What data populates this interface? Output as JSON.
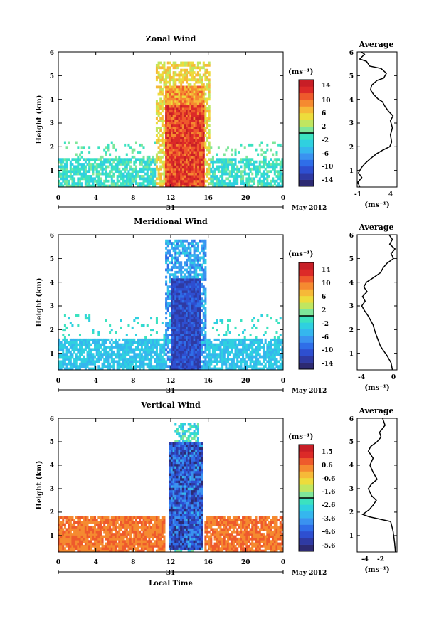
{
  "chart_data": [
    {
      "type": "heatmap",
      "title": "Zonal Wind",
      "ylabel": "Height (km)",
      "x_ticks": [
        "0",
        "4",
        "8",
        "12",
        "16",
        "20",
        "0"
      ],
      "y_ticks": [
        "1",
        "2",
        "3",
        "4",
        "5",
        "6"
      ],
      "xlim": [
        0,
        24
      ],
      "ylim": [
        0.3,
        6
      ],
      "date_label": "31",
      "month_label": "May 2012",
      "colorbar": {
        "unit": "(ms⁻¹)",
        "ticks": [
          "14",
          "10",
          "6",
          "2",
          "-2",
          "-6",
          "-10",
          "-14"
        ],
        "range": [
          -16,
          16
        ]
      },
      "profile": {
        "title": "Average",
        "xlabel": "(ms⁻¹)",
        "x_ticks": [
          "-1",
          "4"
        ],
        "xlim": [
          -1,
          5
        ],
        "y_ticks": [
          "1",
          "2",
          "3",
          "4",
          "5",
          "6"
        ],
        "ylim": [
          0.3,
          6
        ],
        "points": [
          [
            -0.6,
            0.3
          ],
          [
            -0.9,
            0.5
          ],
          [
            -0.3,
            0.7
          ],
          [
            -0.8,
            0.9
          ],
          [
            -0.4,
            1.1
          ],
          [
            0.2,
            1.3
          ],
          [
            1.0,
            1.5
          ],
          [
            1.9,
            1.7
          ],
          [
            2.8,
            1.85
          ],
          [
            3.9,
            2.0
          ],
          [
            4.2,
            2.2
          ],
          [
            4.0,
            2.5
          ],
          [
            4.3,
            2.8
          ],
          [
            4.0,
            3.1
          ],
          [
            4.4,
            3.3
          ],
          [
            3.7,
            3.5
          ],
          [
            3.2,
            3.7
          ],
          [
            2.8,
            3.9
          ],
          [
            2.2,
            4.0
          ],
          [
            1.5,
            4.2
          ],
          [
            1.0,
            4.4
          ],
          [
            1.2,
            4.6
          ],
          [
            2.0,
            4.8
          ],
          [
            3.0,
            4.9
          ],
          [
            3.4,
            5.1
          ],
          [
            2.6,
            5.3
          ],
          [
            0.9,
            5.4
          ],
          [
            0.4,
            5.6
          ],
          [
            -0.6,
            5.7
          ],
          [
            0.1,
            5.9
          ],
          [
            -0.4,
            6.0
          ]
        ]
      }
    },
    {
      "type": "heatmap",
      "title": "Meridional Wind",
      "ylabel": "Height (km)",
      "x_ticks": [
        "0",
        "4",
        "8",
        "12",
        "16",
        "20",
        "0"
      ],
      "y_ticks": [
        "1",
        "2",
        "3",
        "4",
        "5",
        "6"
      ],
      "xlim": [
        0,
        24
      ],
      "ylim": [
        0.3,
        6
      ],
      "date_label": "31",
      "month_label": "May 2012",
      "colorbar": {
        "unit": "(ms⁻¹)",
        "ticks": [
          "14",
          "10",
          "6",
          "2",
          "-2",
          "-6",
          "-10",
          "-14"
        ],
        "range": [
          -16,
          16
        ]
      },
      "profile": {
        "title": "Average",
        "xlabel": "(ms⁻¹)",
        "x_ticks": [
          "-4",
          "0"
        ],
        "xlim": [
          -5.5,
          0.5
        ],
        "y_ticks": [
          "1",
          "2",
          "3",
          "4",
          "5",
          "6"
        ],
        "ylim": [
          0.3,
          6
        ],
        "points": [
          [
            -0.2,
            0.3
          ],
          [
            -0.4,
            0.6
          ],
          [
            -1.0,
            0.9
          ],
          [
            -1.5,
            1.1
          ],
          [
            -2.0,
            1.3
          ],
          [
            -2.4,
            1.6
          ],
          [
            -2.8,
            1.9
          ],
          [
            -3.1,
            2.2
          ],
          [
            -3.5,
            2.4
          ],
          [
            -3.9,
            2.6
          ],
          [
            -4.4,
            2.8
          ],
          [
            -4.8,
            3.0
          ],
          [
            -4.3,
            3.2
          ],
          [
            -4.7,
            3.4
          ],
          [
            -4.0,
            3.6
          ],
          [
            -4.5,
            3.8
          ],
          [
            -4.1,
            4.0
          ],
          [
            -3.0,
            4.2
          ],
          [
            -2.0,
            4.4
          ],
          [
            -1.6,
            4.6
          ],
          [
            -1.0,
            4.8
          ],
          [
            0.0,
            5.0
          ],
          [
            -0.4,
            5.2
          ],
          [
            0.2,
            5.4
          ],
          [
            -0.6,
            5.6
          ],
          [
            -0.2,
            5.8
          ],
          [
            -0.7,
            6.0
          ]
        ]
      }
    },
    {
      "type": "heatmap",
      "title": "Vertical Wind",
      "ylabel": "Height (km)",
      "xlabel": "Local Time",
      "x_ticks": [
        "0",
        "4",
        "8",
        "12",
        "16",
        "20",
        "0"
      ],
      "y_ticks": [
        "1",
        "2",
        "3",
        "4",
        "5",
        "6"
      ],
      "xlim": [
        0,
        24
      ],
      "ylim": [
        0.3,
        6
      ],
      "date_label": "31",
      "month_label": "May 2012",
      "colorbar": {
        "unit": "(ms⁻¹)",
        "ticks": [
          "1.5",
          "0.6",
          "-0.6",
          "-1.6",
          "-2.6",
          "-3.6",
          "-4.6",
          "-5.6"
        ],
        "range": [
          -6.1,
          2.0
        ]
      },
      "profile": {
        "title": "Average",
        "xlabel": "(ms⁻¹)",
        "x_ticks": [
          "-4",
          "-2"
        ],
        "xlim": [
          -5.0,
          0.0
        ],
        "y_ticks": [
          "1",
          "2",
          "3",
          "4",
          "5",
          "6"
        ],
        "ylim": [
          0.3,
          6
        ],
        "points": [
          [
            -0.2,
            0.3
          ],
          [
            -0.3,
            0.7
          ],
          [
            -0.5,
            1.2
          ],
          [
            -0.8,
            1.6
          ],
          [
            -3.5,
            1.8
          ],
          [
            -4.3,
            1.9
          ],
          [
            -3.5,
            2.1
          ],
          [
            -3.0,
            2.3
          ],
          [
            -2.6,
            2.5
          ],
          [
            -3.2,
            2.7
          ],
          [
            -3.6,
            3.0
          ],
          [
            -3.2,
            3.2
          ],
          [
            -2.5,
            3.4
          ],
          [
            -3.0,
            3.7
          ],
          [
            -3.4,
            4.0
          ],
          [
            -3.0,
            4.3
          ],
          [
            -3.6,
            4.6
          ],
          [
            -3.3,
            4.8
          ],
          [
            -2.5,
            5.0
          ],
          [
            -2.0,
            5.2
          ],
          [
            -2.2,
            5.4
          ],
          [
            -1.5,
            5.7
          ],
          [
            -1.8,
            6.0
          ]
        ]
      }
    }
  ]
}
